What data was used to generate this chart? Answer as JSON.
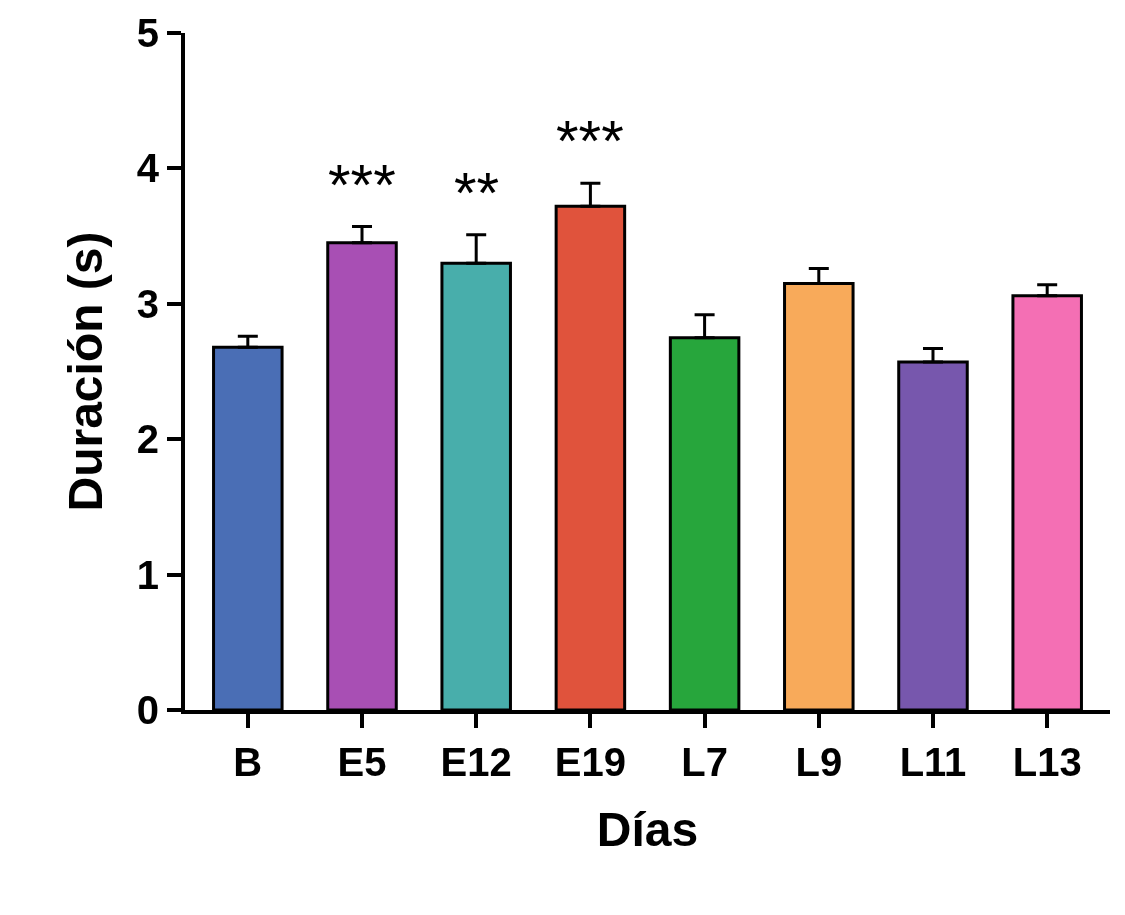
{
  "chart_data": {
    "type": "bar",
    "xlabel": "Días",
    "ylabel": "Duración (s)",
    "categories": [
      "B",
      "E5",
      "E12",
      "E19",
      "L7",
      "L9",
      "L11",
      "L13"
    ],
    "values": [
      2.68,
      3.45,
      3.3,
      3.72,
      2.75,
      3.15,
      2.57,
      3.06
    ],
    "colors": [
      "#4a6eb5",
      "#a84fb4",
      "#48aeab",
      "#e0533c",
      "#27a63c",
      "#f8aa5a",
      "#7757ad",
      "#f46fb4"
    ],
    "errors": [
      [
        2.68,
        2.76
      ],
      [
        3.45,
        3.57
      ],
      [
        3.3,
        3.51
      ],
      [
        3.72,
        3.89
      ],
      [
        2.75,
        2.92
      ],
      [
        3.15,
        3.26
      ],
      [
        2.57,
        2.67
      ],
      [
        3.06,
        3.14
      ]
    ],
    "ylim": [
      0,
      5
    ],
    "yticks": [
      0,
      1,
      2,
      3,
      4,
      5
    ],
    "grid": false,
    "annotations": [
      {
        "text": "***",
        "x": "E5",
        "y": 3.57
      },
      {
        "text": "**",
        "x": "E12",
        "y": 3.51
      },
      {
        "text": "***",
        "x": "E19",
        "y": 3.89
      }
    ]
  }
}
